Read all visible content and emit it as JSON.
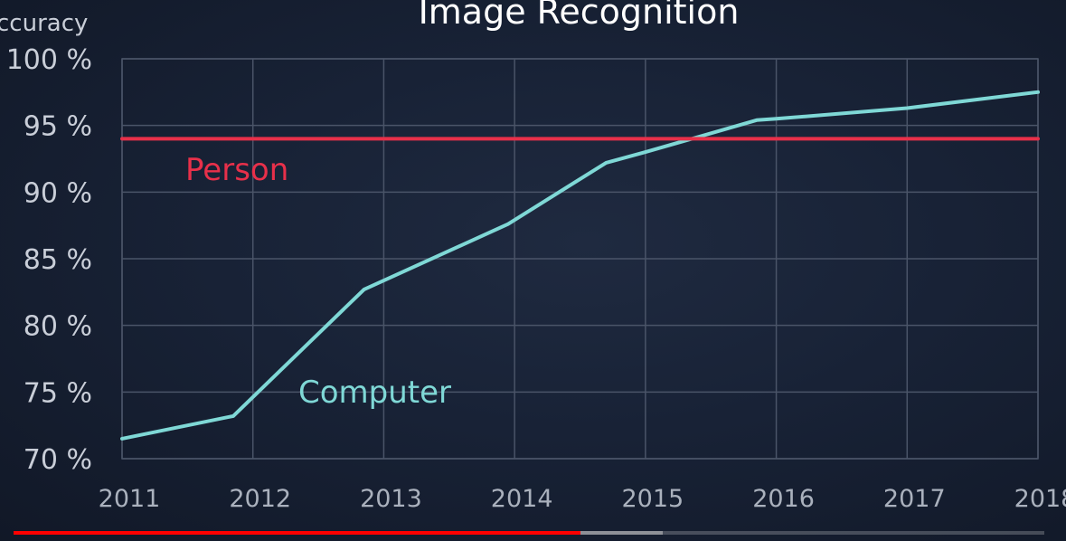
{
  "chart_data": {
    "type": "line",
    "title": "Image Recognition",
    "ylabel": "ccuracy",
    "xlabel": "",
    "x": [
      2011,
      2012,
      2013,
      2014,
      2015,
      2016,
      2017,
      2018
    ],
    "x_tick_labels": [
      "2011",
      "2012",
      "2013",
      "2014",
      "2015",
      "2016",
      "2017",
      "2018"
    ],
    "y_ticks": [
      70,
      75,
      80,
      85,
      90,
      95,
      100
    ],
    "y_tick_labels": [
      "70 %",
      "75 %",
      "80 %",
      "85 %",
      "90 %",
      "95 %",
      "100 %"
    ],
    "xlim": [
      2011,
      2018
    ],
    "ylim": [
      70,
      100
    ],
    "grid": true,
    "series": [
      {
        "name": "Computer",
        "color": "#7fd8d6",
        "points": [
          [
            2011.0,
            71.5
          ],
          [
            2011.85,
            73.2
          ],
          [
            2012.85,
            82.7
          ],
          [
            2013.95,
            87.6
          ],
          [
            2014.7,
            92.2
          ],
          [
            2015.0,
            93.0
          ],
          [
            2015.85,
            95.4
          ],
          [
            2016.0,
            95.5
          ],
          [
            2017.0,
            96.3
          ],
          [
            2018.0,
            97.5
          ]
        ]
      },
      {
        "name": "Person",
        "color": "#e8304a",
        "points": [
          [
            2011,
            94.0
          ],
          [
            2018,
            94.0
          ]
        ]
      }
    ]
  },
  "video": {
    "progress_played": 0.55,
    "progress_buffered": 0.63
  }
}
